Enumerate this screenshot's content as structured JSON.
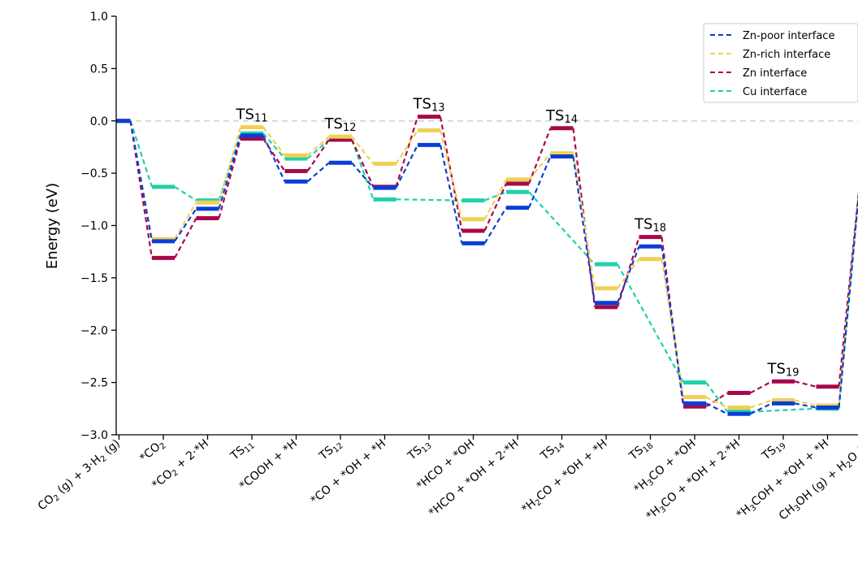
{
  "chart_data": {
    "type": "line",
    "ylabel": "Energy (eV)",
    "ylim": [
      -3.0,
      1.0
    ],
    "yticks": [
      "1.0",
      "0.5",
      "0.0",
      "−0.5",
      "−1.0",
      "−1.5",
      "−2.0",
      "−2.5",
      "−3.0"
    ],
    "reference_line": {
      "y": 0.0,
      "style": "dashed",
      "color": "#d9d9d9"
    },
    "categories": [
      [
        {
          "t": "CO"
        },
        {
          "t": "2",
          "sub": true
        },
        {
          "t": " (g) + 3·H"
        },
        {
          "t": "2",
          "sub": true
        },
        {
          "t": " (g)"
        }
      ],
      [
        {
          "t": "*CO"
        },
        {
          "t": "2",
          "sub": true
        }
      ],
      [
        {
          "t": "*CO"
        },
        {
          "t": "2",
          "sub": true
        },
        {
          "t": " + 2·*H"
        }
      ],
      [
        {
          "t": "TS"
        },
        {
          "t": "11",
          "sub": true
        }
      ],
      [
        {
          "t": "*COOH + *H"
        }
      ],
      [
        {
          "t": "TS"
        },
        {
          "t": "12",
          "sub": true
        }
      ],
      [
        {
          "t": "*CO + *OH + *H"
        }
      ],
      [
        {
          "t": "TS"
        },
        {
          "t": "13",
          "sub": true
        }
      ],
      [
        {
          "t": "*HCO + *OH"
        }
      ],
      [
        {
          "t": "*HCO + *OH + 2·*H"
        }
      ],
      [
        {
          "t": "TS"
        },
        {
          "t": "14",
          "sub": true
        }
      ],
      [
        {
          "t": "*H"
        },
        {
          "t": "2",
          "sub": true
        },
        {
          "t": "CO + *OH + *H"
        }
      ],
      [
        {
          "t": "TS"
        },
        {
          "t": "18",
          "sub": true
        }
      ],
      [
        {
          "t": "*H"
        },
        {
          "t": "3",
          "sub": true
        },
        {
          "t": "CO + *OH"
        }
      ],
      [
        {
          "t": "*H"
        },
        {
          "t": "3",
          "sub": true
        },
        {
          "t": "CO + *OH + 2·*H"
        }
      ],
      [
        {
          "t": "TS"
        },
        {
          "t": "19",
          "sub": true
        }
      ],
      [
        {
          "t": "*H"
        },
        {
          "t": "3",
          "sub": true
        },
        {
          "t": "COH + *OH + *H"
        }
      ],
      [
        {
          "t": "CH"
        },
        {
          "t": "3",
          "sub": true
        },
        {
          "t": "OH (g) + H"
        },
        {
          "t": "2",
          "sub": true
        },
        {
          "t": "O (g)"
        }
      ]
    ],
    "ts_labels": [
      {
        "index": 3,
        "base": "TS",
        "sub": "11"
      },
      {
        "index": 5,
        "base": "TS",
        "sub": "12"
      },
      {
        "index": 7,
        "base": "TS",
        "sub": "13"
      },
      {
        "index": 10,
        "base": "TS",
        "sub": "14"
      },
      {
        "index": 12,
        "base": "TS",
        "sub": "18"
      },
      {
        "index": 15,
        "base": "TS",
        "sub": "19"
      }
    ],
    "series": [
      {
        "name": "Cu interface",
        "color": "#1fd1a8",
        "values": [
          0,
          -0.63,
          -0.76,
          -0.12,
          -0.36,
          -0.18,
          -0.75,
          null,
          -0.76,
          -0.68,
          null,
          -1.37,
          null,
          -2.5,
          -2.78,
          null,
          -2.75,
          -0.52
        ]
      },
      {
        "name": "Zn interface",
        "color": "#a8084a",
        "values": [
          0,
          -1.31,
          -0.93,
          -0.17,
          -0.48,
          -0.18,
          -0.63,
          0.04,
          -1.05,
          -0.6,
          -0.07,
          -1.78,
          -1.11,
          -2.73,
          -2.6,
          -2.49,
          -2.54,
          -0.52
        ]
      },
      {
        "name": "Zn-rich interface",
        "color": "#f0d055",
        "values": [
          0,
          -1.13,
          -0.78,
          -0.06,
          -0.33,
          -0.15,
          -0.41,
          -0.09,
          -0.94,
          -0.56,
          -0.31,
          -1.6,
          -1.32,
          -2.64,
          -2.74,
          -2.67,
          -2.72,
          -0.52
        ]
      },
      {
        "name": "Zn-poor interface",
        "color": "#0a3fd6",
        "values": [
          0,
          -1.15,
          -0.84,
          -0.14,
          -0.58,
          -0.4,
          -0.64,
          -0.23,
          -1.17,
          -0.83,
          -0.34,
          -1.74,
          -1.2,
          -2.7,
          -2.8,
          -2.7,
          -2.74,
          -0.52
        ]
      }
    ],
    "legend": {
      "placement": "top-right",
      "entries": [
        "Zn-poor interface",
        "Zn-rich interface",
        "Zn interface",
        "Cu interface"
      ]
    }
  },
  "legend_colors": {
    "Zn-poor interface": "#0a3fd6",
    "Zn-rich interface": "#f0d055",
    "Zn interface": "#a8084a",
    "Cu interface": "#1fd1a8"
  }
}
